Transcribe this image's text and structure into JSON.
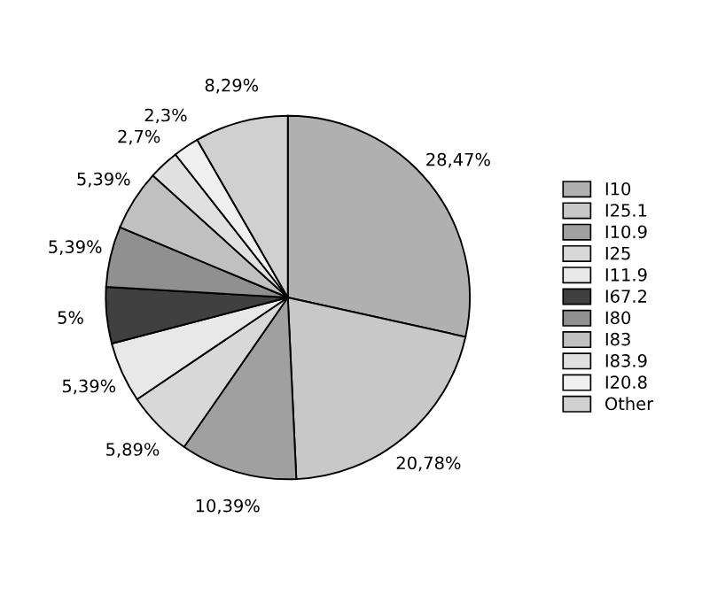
{
  "chart_data": {
    "type": "pie",
    "categories": [
      "I10",
      "I25.1",
      "I10.9",
      "I25",
      "I11.9",
      "I67.2",
      "I80",
      "I83",
      "I83.9",
      "I20.8",
      "Other"
    ],
    "values": [
      28.47,
      20.78,
      10.39,
      5.89,
      5.39,
      5,
      5.39,
      5.39,
      2.7,
      2.3,
      8.29
    ],
    "value_labels": [
      "28,47%",
      "20,78%",
      "10,39%",
      "5,89%",
      "5,39%",
      "5%",
      "5,39%",
      "5,39%",
      "2,7%",
      "2,3%",
      "8,29%"
    ],
    "colors": [
      "#b0b0b0",
      "#c8c8c8",
      "#a0a0a0",
      "#d8d8d8",
      "#e8e8e8",
      "#404040",
      "#909090",
      "#c0c0c0",
      "#e0e0e0",
      "#f0f0f0",
      "#d0d0d0"
    ],
    "legend": "right"
  }
}
